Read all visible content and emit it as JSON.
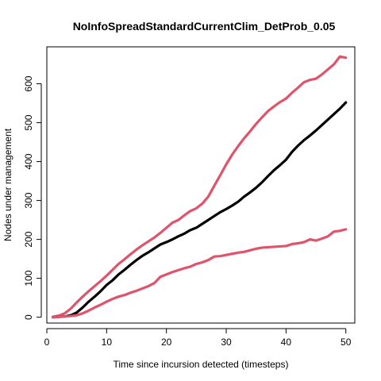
{
  "chart_data": {
    "type": "line",
    "title": "NoInfoSpreadStandardCurrentClim_DetProb_0.05",
    "xlabel": "Time since incursion detected (timesteps)",
    "ylabel": "Nodes under management",
    "xlim": [
      0,
      51.5
    ],
    "ylim": [
      -15,
      695
    ],
    "xticks": [
      0,
      10,
      20,
      30,
      40,
      50
    ],
    "yticks": [
      0,
      100,
      200,
      300,
      400,
      500,
      600
    ],
    "grid": false,
    "legend": "none",
    "series": [
      {
        "color": "#DF536B",
        "x": [
          1,
          2,
          3,
          4,
          5,
          6,
          7,
          8,
          9,
          10,
          11,
          12,
          13,
          14,
          15,
          16,
          17,
          18,
          19,
          20,
          21,
          22,
          23,
          24,
          25,
          26,
          27,
          28,
          29,
          30,
          31,
          32,
          33,
          34,
          35,
          36,
          37,
          38,
          39,
          40,
          41,
          42,
          43,
          44,
          45,
          46,
          47,
          48,
          49,
          50
        ],
        "y": [
          1,
          4,
          10,
          22,
          38,
          53,
          67,
          80,
          93,
          107,
          122,
          137,
          149,
          162,
          174,
          185,
          195,
          205,
          217,
          230,
          243,
          250,
          262,
          273,
          280,
          292,
          310,
          338,
          365,
          393,
          418,
          440,
          460,
          478,
          497,
          514,
          530,
          542,
          553,
          562,
          577,
          590,
          604,
          610,
          613,
          624,
          637,
          650,
          670,
          667
        ]
      },
      {
        "color": "#000000",
        "x": [
          1,
          2,
          3,
          4,
          5,
          6,
          7,
          8,
          9,
          10,
          11,
          12,
          13,
          14,
          15,
          16,
          17,
          18,
          19,
          20,
          21,
          22,
          23,
          24,
          25,
          26,
          27,
          28,
          29,
          30,
          31,
          32,
          33,
          34,
          35,
          36,
          37,
          38,
          39,
          40,
          41,
          42,
          43,
          44,
          45,
          46,
          47,
          48,
          49,
          50
        ],
        "y": [
          0,
          1,
          2,
          5,
          12,
          25,
          40,
          53,
          67,
          83,
          95,
          110,
          122,
          135,
          147,
          158,
          167,
          177,
          187,
          193,
          200,
          208,
          215,
          224,
          230,
          240,
          250,
          260,
          270,
          278,
          287,
          297,
          310,
          321,
          333,
          347,
          363,
          378,
          391,
          405,
          425,
          441,
          455,
          467,
          480,
          494,
          508,
          522,
          536,
          552
        ]
      },
      {
        "color": "#DF536B",
        "x": [
          1,
          2,
          3,
          4,
          5,
          6,
          7,
          8,
          9,
          10,
          11,
          12,
          13,
          14,
          15,
          16,
          17,
          18,
          19,
          20,
          21,
          22,
          23,
          24,
          25,
          26,
          27,
          28,
          29,
          30,
          31,
          32,
          33,
          34,
          35,
          36,
          37,
          38,
          39,
          40,
          41,
          42,
          43,
          44,
          45,
          46,
          47,
          48,
          49,
          50
        ],
        "y": [
          0,
          1,
          2,
          3,
          5,
          10,
          17,
          25,
          32,
          40,
          47,
          53,
          57,
          63,
          68,
          74,
          80,
          88,
          104,
          110,
          116,
          121,
          126,
          130,
          137,
          141,
          147,
          156,
          157,
          160,
          163,
          166,
          168,
          172,
          176,
          179,
          180,
          181,
          182,
          183,
          188,
          190,
          193,
          200,
          197,
          202,
          208,
          220,
          222,
          226
        ]
      }
    ]
  }
}
